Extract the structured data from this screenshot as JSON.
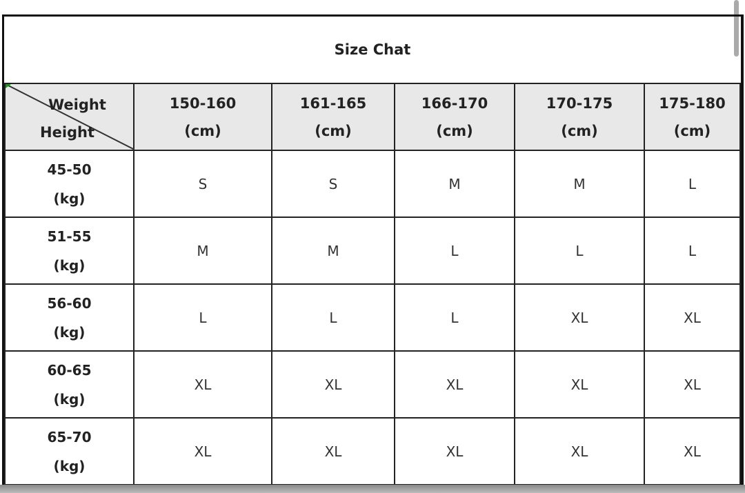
{
  "title": "Size Chat",
  "corner": {
    "top": "Weight",
    "bottom": "Height"
  },
  "columns": [
    {
      "range": "150-160",
      "unit": "(cm)"
    },
    {
      "range": "161-165",
      "unit": "(cm)"
    },
    {
      "range": "166-170",
      "unit": "(cm)"
    },
    {
      "range": "170-175",
      "unit": "(cm)"
    },
    {
      "range": "175-180",
      "unit": "(cm)"
    }
  ],
  "rows": [
    {
      "range": "45-50",
      "unit": "(kg)",
      "sizes": [
        "S",
        "S",
        "M",
        "M",
        "L"
      ]
    },
    {
      "range": "51-55",
      "unit": "(kg)",
      "sizes": [
        "M",
        "M",
        "L",
        "L",
        "L"
      ]
    },
    {
      "range": "56-60",
      "unit": "(kg)",
      "sizes": [
        "L",
        "L",
        "L",
        "XL",
        "XL"
      ]
    },
    {
      "range": "60-65",
      "unit": "(kg)",
      "sizes": [
        "XL",
        "XL",
        "XL",
        "XL",
        "XL"
      ]
    },
    {
      "range": "65-70",
      "unit": "(kg)",
      "sizes": [
        "XL",
        "XL",
        "XL",
        "XL",
        "XL"
      ]
    }
  ]
}
